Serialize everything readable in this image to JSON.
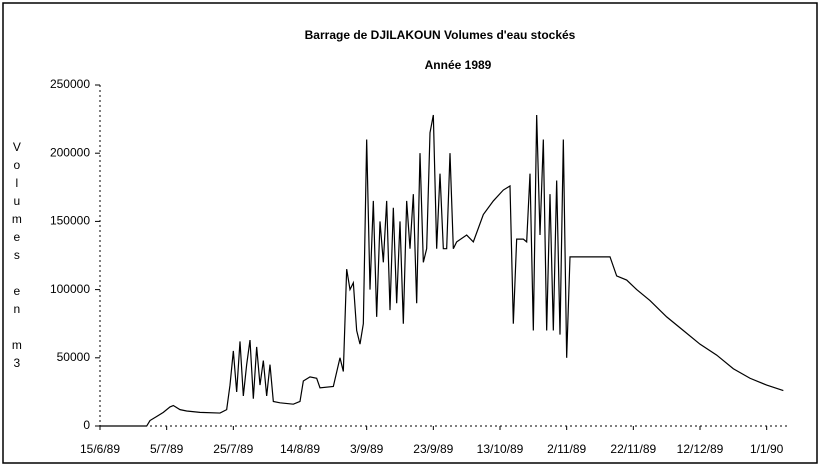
{
  "chart_data": {
    "type": "line",
    "title": "Barrage de DJILAKOUN   Volumes d'eau stockés",
    "subtitle": "Année 1989",
    "y_label": "Volumes en m3",
    "color": "#000000",
    "grid": false,
    "x": [
      "1989-06-15",
      "1989-06-25",
      "1989-06-29",
      "1989-06-30",
      "1989-07-02",
      "1989-07-04",
      "1989-07-06",
      "1989-07-07",
      "1989-07-09",
      "1989-07-11",
      "1989-07-15",
      "1989-07-21",
      "1989-07-23",
      "1989-07-24",
      "1989-07-25",
      "1989-07-26",
      "1989-07-27",
      "1989-07-28",
      "1989-07-29",
      "1989-07-30",
      "1989-07-31",
      "1989-08-01",
      "1989-08-02",
      "1989-08-03",
      "1989-08-04",
      "1989-08-05",
      "1989-08-06",
      "1989-08-08",
      "1989-08-12",
      "1989-08-14",
      "1989-08-15",
      "1989-08-17",
      "1989-08-19",
      "1989-08-20",
      "1989-08-24",
      "1989-08-26",
      "1989-08-27",
      "1989-08-28",
      "1989-08-29",
      "1989-08-30",
      "1989-08-31",
      "1989-09-01",
      "1989-09-02",
      "1989-09-03",
      "1989-09-04",
      "1989-09-05",
      "1989-09-06",
      "1989-09-07",
      "1989-09-08",
      "1989-09-09",
      "1989-09-10",
      "1989-09-11",
      "1989-09-12",
      "1989-09-13",
      "1989-09-14",
      "1989-09-15",
      "1989-09-16",
      "1989-09-17",
      "1989-09-18",
      "1989-09-19",
      "1989-09-20",
      "1989-09-21",
      "1989-09-22",
      "1989-09-23",
      "1989-09-24",
      "1989-09-25",
      "1989-09-26",
      "1989-09-27",
      "1989-09-28",
      "1989-09-29",
      "1989-09-30",
      "1989-10-03",
      "1989-10-05",
      "1989-10-08",
      "1989-10-11",
      "1989-10-14",
      "1989-10-16",
      "1989-10-17",
      "1989-10-18",
      "1989-10-20",
      "1989-10-21",
      "1989-10-22",
      "1989-10-23",
      "1989-10-24",
      "1989-10-25",
      "1989-10-26",
      "1989-10-27",
      "1989-10-28",
      "1989-10-29",
      "1989-10-30",
      "1989-10-31",
      "1989-11-01",
      "1989-11-02",
      "1989-11-03",
      "1989-11-12",
      "1989-11-15",
      "1989-11-17",
      "1989-11-20",
      "1989-11-23",
      "1989-11-27",
      "1989-12-02",
      "1989-12-07",
      "1989-12-12",
      "1989-12-17",
      "1989-12-22",
      "1989-12-27",
      "1990-01-01",
      "1990-01-06"
    ],
    "values": [
      0,
      0,
      0,
      4000,
      7000,
      10000,
      14000,
      15000,
      12000,
      11000,
      10000,
      9500,
      12000,
      30000,
      55000,
      25000,
      62000,
      22000,
      45000,
      63000,
      20000,
      58000,
      30000,
      48000,
      22000,
      45000,
      18000,
      17000,
      16000,
      18000,
      33000,
      36000,
      35000,
      28000,
      29000,
      50000,
      40000,
      115000,
      100000,
      105000,
      70000,
      60000,
      75000,
      210000,
      100000,
      165000,
      80000,
      150000,
      120000,
      165000,
      85000,
      160000,
      90000,
      150000,
      75000,
      165000,
      130000,
      170000,
      90000,
      200000,
      120000,
      130000,
      215000,
      228000,
      130000,
      185000,
      130000,
      130000,
      200000,
      130000,
      135000,
      140000,
      135000,
      155000,
      165000,
      173000,
      176000,
      75000,
      137000,
      137000,
      135000,
      185000,
      70000,
      228000,
      140000,
      210000,
      70000,
      170000,
      70000,
      180000,
      67000,
      210000,
      50000,
      124000,
      124000,
      124000,
      110000,
      107000,
      100000,
      92000,
      80000,
      70000,
      60000,
      52000,
      42000,
      35000,
      30000,
      26000
    ],
    "xlim": [
      "1989-06-15",
      "1990-01-08"
    ],
    "xticks": [
      {
        "value": "1989-06-15",
        "label": "15/6/89"
      },
      {
        "value": "1989-07-05",
        "label": "5/7/89"
      },
      {
        "value": "1989-07-25",
        "label": "25/7/89"
      },
      {
        "value": "1989-08-14",
        "label": "14/8/89"
      },
      {
        "value": "1989-09-03",
        "label": "3/9/89"
      },
      {
        "value": "1989-09-23",
        "label": "23/9/89"
      },
      {
        "value": "1989-10-13",
        "label": "13/10/89"
      },
      {
        "value": "1989-11-02",
        "label": "2/11/89"
      },
      {
        "value": "1989-11-22",
        "label": "22/11/89"
      },
      {
        "value": "1989-12-12",
        "label": "12/12/89"
      },
      {
        "value": "1990-01-01",
        "label": "1/1/90"
      }
    ],
    "ylim": [
      0,
      250000
    ],
    "yticks": [
      0,
      50000,
      100000,
      150000,
      200000,
      250000
    ]
  }
}
